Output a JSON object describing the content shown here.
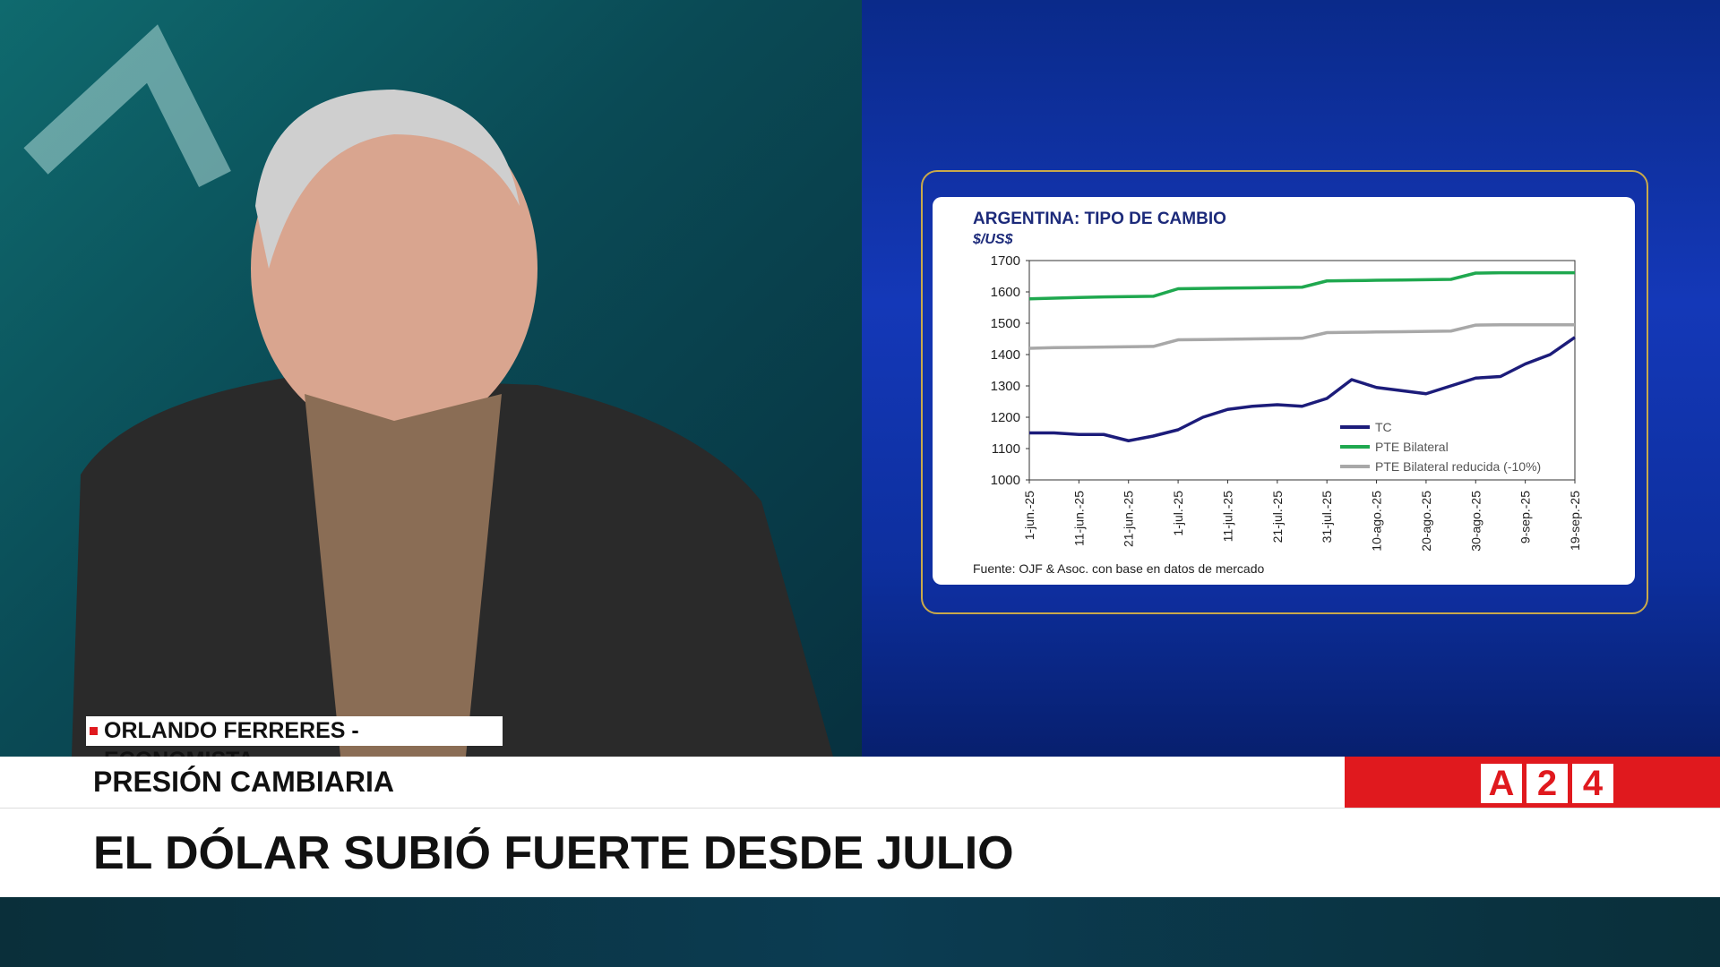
{
  "lower_third": {
    "name_tag": "ORLANDO FERRERES - ECONOMISTA",
    "topic": "PRESIÓN CAMBIARIA",
    "headline": "EL DÓLAR SUBIÓ FUERTE DESDE JULIO",
    "logo": [
      "A",
      "2",
      "4"
    ]
  },
  "chart_data": {
    "type": "line",
    "title": "ARGENTINA: TIPO DE CAMBIO",
    "subtitle": "$/US$",
    "source": "Fuente: OJF & Asoc. con base en datos de mercado",
    "categories": [
      "1-jun.-25",
      null,
      "11-jun.-25",
      null,
      "21-jun.-25",
      null,
      "1-jul.-25",
      null,
      "11-jul.-25",
      null,
      "21-jul.-25",
      null,
      "31-jul.-25",
      null,
      "10-ago.-25",
      null,
      "20-ago.-25",
      null,
      "30-ago.-25",
      null,
      "9-sep.-25",
      null,
      "19-sep.-25"
    ],
    "series": [
      {
        "name": "TC",
        "color": "#1c1c7a",
        "values": [
          1150,
          1150,
          1145,
          1145,
          1125,
          1140,
          1160,
          1200,
          1225,
          1235,
          1240,
          1235,
          1260,
          1320,
          1295,
          1285,
          1275,
          1300,
          1325,
          1330,
          1370,
          1400,
          1455
        ]
      },
      {
        "name": "PTE Bilateral",
        "color": "#1fa84f",
        "values": [
          1578,
          1580,
          1582,
          1584,
          1585,
          1586,
          1610,
          1611,
          1612,
          1613,
          1614,
          1615,
          1635,
          1636,
          1637,
          1638,
          1639,
          1640,
          1660,
          1661,
          1661,
          1661,
          1661
        ]
      },
      {
        "name": "PTE Bilateral reducida (-10%)",
        "color": "#a8a8a8",
        "values": [
          1420,
          1422,
          1423,
          1424,
          1425,
          1426,
          1447,
          1448,
          1449,
          1450,
          1451,
          1452,
          1470,
          1471,
          1472,
          1473,
          1474,
          1475,
          1494,
          1495,
          1495,
          1495,
          1495
        ]
      }
    ],
    "ylim": [
      1000,
      1700
    ],
    "yticks": [
      1000,
      1100,
      1200,
      1300,
      1400,
      1500,
      1600,
      1700
    ]
  }
}
